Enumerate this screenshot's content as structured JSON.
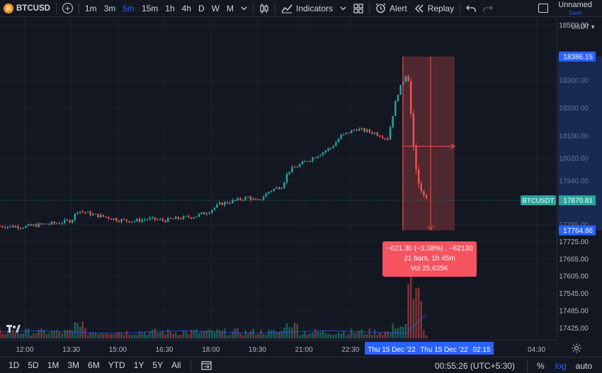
{
  "toolbar": {
    "symbol_badge": "B",
    "symbol": "BTCUSD",
    "intervals": [
      "1m",
      "3m",
      "5m",
      "15m",
      "1h",
      "4h",
      "D",
      "W",
      "M"
    ],
    "active_interval": "5m",
    "indicators_label": "Indicators",
    "alert_label": "Alert",
    "replay_label": "Replay",
    "layout_name": "Unnamed",
    "save_label": "Save"
  },
  "price_axis": {
    "currency": "USDT",
    "ticks": [
      "18500.00",
      "18300.00",
      "18200.00",
      "18100.00",
      "18020.00",
      "17940.00",
      "17785.00",
      "17725.00",
      "17665.00",
      "17605.00",
      "17545.00",
      "17485.00",
      "17425.00"
    ],
    "range_high_label": "18386.15",
    "range_low_label": "17764.86",
    "last_price": "17870.81",
    "last_symbol": "BTCUSDT"
  },
  "time_axis": {
    "ticks": [
      "12:00",
      "13:30",
      "15:00",
      "16:30",
      "18:00",
      "19:30",
      "21:00",
      "22:30",
      "04:30"
    ],
    "range_start": "Thu 15 Dec '22",
    "range_end": "Thu 15 Dec '22",
    "range_end_time": "02:15"
  },
  "measure": {
    "line1": "−621.30 (−3.38%) , −62130",
    "line2": "21 bars, 1h 45m",
    "line3": "Vol 25.635K"
  },
  "bottom": {
    "ranges": [
      "1D",
      "5D",
      "1M",
      "3M",
      "6M",
      "YTD",
      "1Y",
      "5Y",
      "All"
    ],
    "clock": "00:55:26 (UTC+5:30)",
    "percent_label": "%",
    "log_label": "log",
    "auto_label": "auto"
  },
  "colors": {
    "up": "#26a69a",
    "down": "#ef5350",
    "accent": "#2962ff",
    "measure_fill": "#5b2a31"
  },
  "chart_data": {
    "type": "candlestick",
    "symbol": "BTCUSDT",
    "interval": "5m",
    "close_path": [
      [
        11.2,
        17780
      ],
      [
        12.0,
        17778
      ],
      [
        12.5,
        17785
      ],
      [
        13.0,
        17790
      ],
      [
        13.5,
        17800
      ],
      [
        13.7,
        17835
      ],
      [
        14.2,
        17820
      ],
      [
        14.7,
        17810
      ],
      [
        15.0,
        17802
      ],
      [
        15.5,
        17798
      ],
      [
        16.0,
        17805
      ],
      [
        16.5,
        17800
      ],
      [
        17.0,
        17808
      ],
      [
        17.5,
        17815
      ],
      [
        17.9,
        17830
      ],
      [
        18.3,
        17858
      ],
      [
        18.8,
        17870
      ],
      [
        19.2,
        17882
      ],
      [
        19.5,
        17865
      ],
      [
        19.9,
        17905
      ],
      [
        20.3,
        17922
      ],
      [
        20.5,
        17975
      ],
      [
        21.0,
        18005
      ],
      [
        21.5,
        18035
      ],
      [
        21.9,
        18060
      ],
      [
        22.2,
        18100
      ],
      [
        22.7,
        18125
      ],
      [
        23.3,
        18110
      ],
      [
        23.7,
        18090
      ],
      [
        24.0,
        18245
      ],
      [
        24.3,
        18325
      ],
      [
        24.4,
        18290
      ],
      [
        24.45,
        18180
      ],
      [
        24.55,
        18040
      ],
      [
        24.65,
        17950
      ],
      [
        24.75,
        17910
      ],
      [
        24.9,
        17885
      ],
      [
        25.0,
        17870.81
      ]
    ],
    "measured_range": {
      "change": -621.3,
      "change_pct": -3.38,
      "bars": 21,
      "duration": "1h 45m",
      "volume": "25.635K",
      "high": 18386.15,
      "low": 17764.86
    }
  }
}
